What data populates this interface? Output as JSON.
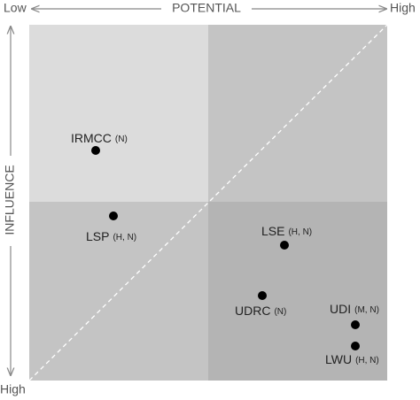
{
  "axes": {
    "x_low": "Low",
    "x_title": "POTENTIAL",
    "x_high": "High",
    "y_title": "INFLUENCE",
    "y_high": "High"
  },
  "nodes": [
    {
      "name": "IRMCC",
      "qualifier": "(N)"
    },
    {
      "name": "LSP",
      "qualifier": "(H, N)"
    },
    {
      "name": "LSE",
      "qualifier": "(H, N)"
    },
    {
      "name": "UDRC",
      "qualifier": "(N)"
    },
    {
      "name": "UDI",
      "qualifier": "(M, N)"
    },
    {
      "name": "LWU",
      "qualifier": "(H, N)"
    }
  ]
}
